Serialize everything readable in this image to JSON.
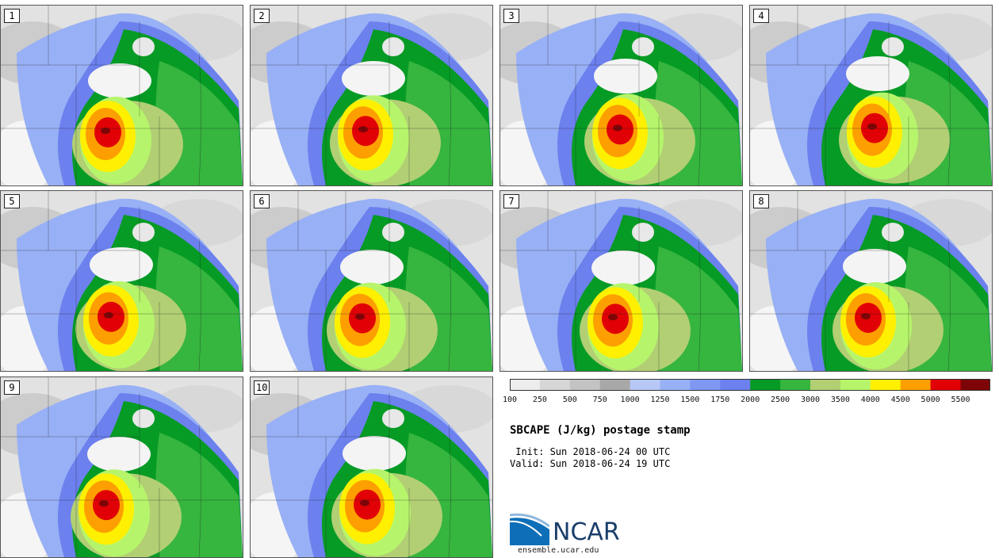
{
  "title": "SBCAPE (J/kg) postage stamp",
  "init_time": " Init: Sun 2018-06-24 00 UTC",
  "valid_time": "Valid: Sun 2018-06-24 19 UTC",
  "website": "ensemble.ucar.edu",
  "logo_text": "NCAR",
  "colorbar": {
    "ticks": [
      "100",
      "250",
      "500",
      "750",
      "1000",
      "1250",
      "1500",
      "1750",
      "2000",
      "2500",
      "3000",
      "3500",
      "4000",
      "4500",
      "5000",
      "5500"
    ],
    "colors": [
      "#ededed",
      "#d6d6d6",
      "#c3c3c3",
      "#a8a8a8",
      "#b7c8f7",
      "#98b0f5",
      "#7f98f2",
      "#6c80ee",
      "#069b25",
      "#36b53f",
      "#b2cf74",
      "#b6f56b",
      "#fef000",
      "#fd9f00",
      "#e10005",
      "#7d0507"
    ]
  },
  "members": [
    {
      "label": "1"
    },
    {
      "label": "2"
    },
    {
      "label": "3"
    },
    {
      "label": "4"
    },
    {
      "label": "5"
    },
    {
      "label": "6"
    },
    {
      "label": "7"
    },
    {
      "label": "8"
    },
    {
      "label": "9"
    },
    {
      "label": "10"
    }
  ]
}
